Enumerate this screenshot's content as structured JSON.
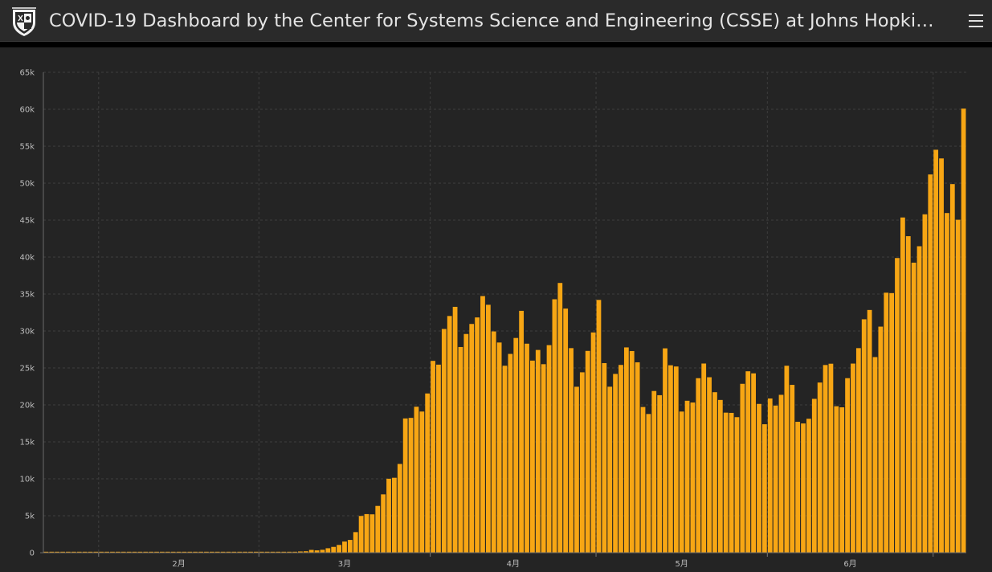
{
  "header": {
    "title": "COVID-19 Dashboard by the Center for Systems Science and Engineering (CSSE) at Johns Hopkins ...",
    "logo_icon": "shield-crest-icon",
    "menu_icon": "hamburger-menu-icon"
  },
  "colors": {
    "header_bg": "#2a2a2a",
    "panel_bg": "#242424",
    "bar": "#f7a614",
    "grid": "#3e3e3e",
    "text": "#e4e4e4"
  },
  "chart_data": {
    "type": "bar",
    "title": "",
    "xlabel": "",
    "ylabel": "",
    "ylim": [
      0,
      65000
    ],
    "yticks": [
      0,
      5000,
      10000,
      15000,
      20000,
      25000,
      30000,
      35000,
      40000,
      45000,
      50000,
      55000,
      60000,
      65000
    ],
    "ytick_labels": [
      "0",
      "5k",
      "10k",
      "15k",
      "20k",
      "25k",
      "30k",
      "35k",
      "40k",
      "45k",
      "50k",
      "55k",
      "60k",
      "65k"
    ],
    "xtick_labels": [
      "2月",
      "3月",
      "4月",
      "5月",
      "6月"
    ],
    "grid": true,
    "legend": "none",
    "start_date": "2020-01-22",
    "values": [
      1,
      0,
      1,
      0,
      3,
      0,
      0,
      0,
      0,
      2,
      1,
      0,
      3,
      0,
      0,
      0,
      0,
      0,
      0,
      0,
      0,
      1,
      0,
      0,
      0,
      0,
      0,
      2,
      0,
      0,
      10,
      18,
      0,
      20,
      25,
      3,
      43,
      23,
      26,
      47,
      121,
      23,
      130,
      40,
      130,
      95,
      168,
      197,
      382,
      317,
      398,
      607,
      788,
      1054,
      1513,
      1730,
      2788,
      4973,
      5226,
      5195,
      6334,
      7897,
      10011,
      10141,
      12010,
      18168,
      18243,
      19752,
      19102,
      21547,
      25958,
      25447,
      30274,
      32029,
      33267,
      27829,
      29595,
      30952,
      31834,
      34726,
      33548,
      29941,
      28442,
      25298,
      26899,
      29057,
      32726,
      28284,
      25992,
      27434,
      25509,
      28086,
      34294,
      36499,
      33033,
      27680,
      22455,
      24411,
      27305,
      29805,
      34204,
      25654,
      22461,
      24191,
      25409,
      27778,
      27286,
      25759,
      19716,
      18770,
      21880,
      21310,
      27652,
      25363,
      25196,
      19100,
      20561,
      20325,
      23615,
      25598,
      23744,
      21719,
      20669,
      18951,
      18919,
      18341,
      22851,
      24547,
      24270,
      20133,
      17383,
      20866,
      19910,
      21364,
      25296,
      22712,
      17715,
      17489,
      18126,
      20818,
      23025,
      25397,
      25574,
      19820,
      19673,
      23617,
      25591,
      27681,
      31584,
      32842,
      26471,
      30591,
      35179,
      35126,
      39868,
      45358,
      42825,
      39246,
      41466,
      45787,
      51177,
      54520,
      53347,
      45958,
      49874,
      45047,
      60087
    ]
  }
}
